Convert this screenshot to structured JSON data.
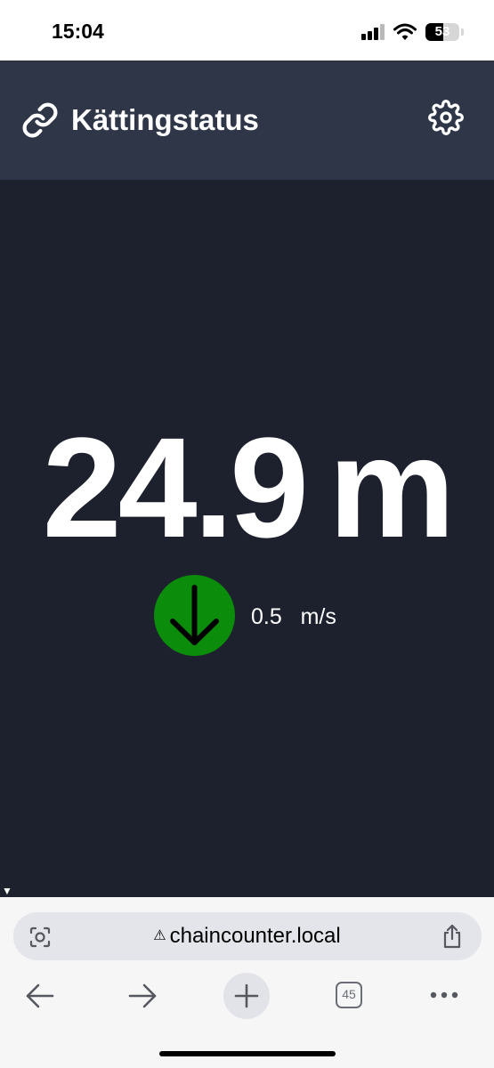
{
  "status_bar": {
    "time": "15:04",
    "battery_level": "53",
    "battery_fraction": 0.53
  },
  "header": {
    "title": "Kättingstatus",
    "left_icon": "link-icon",
    "right_icon": "gear-icon",
    "background": "#2e3648"
  },
  "main": {
    "distance_value": "24.9",
    "distance_unit": "m",
    "direction_icon": "arrow-down-icon",
    "direction_color": "#0b8c0b",
    "speed_value": "0.5",
    "speed_unit": "m/s",
    "debug_toggle": "▼",
    "background": "#1d212d"
  },
  "browser": {
    "url": "chaincounter.local",
    "warning_icon": "⚠",
    "tab_count": "45",
    "background": "#f6f6f7"
  }
}
